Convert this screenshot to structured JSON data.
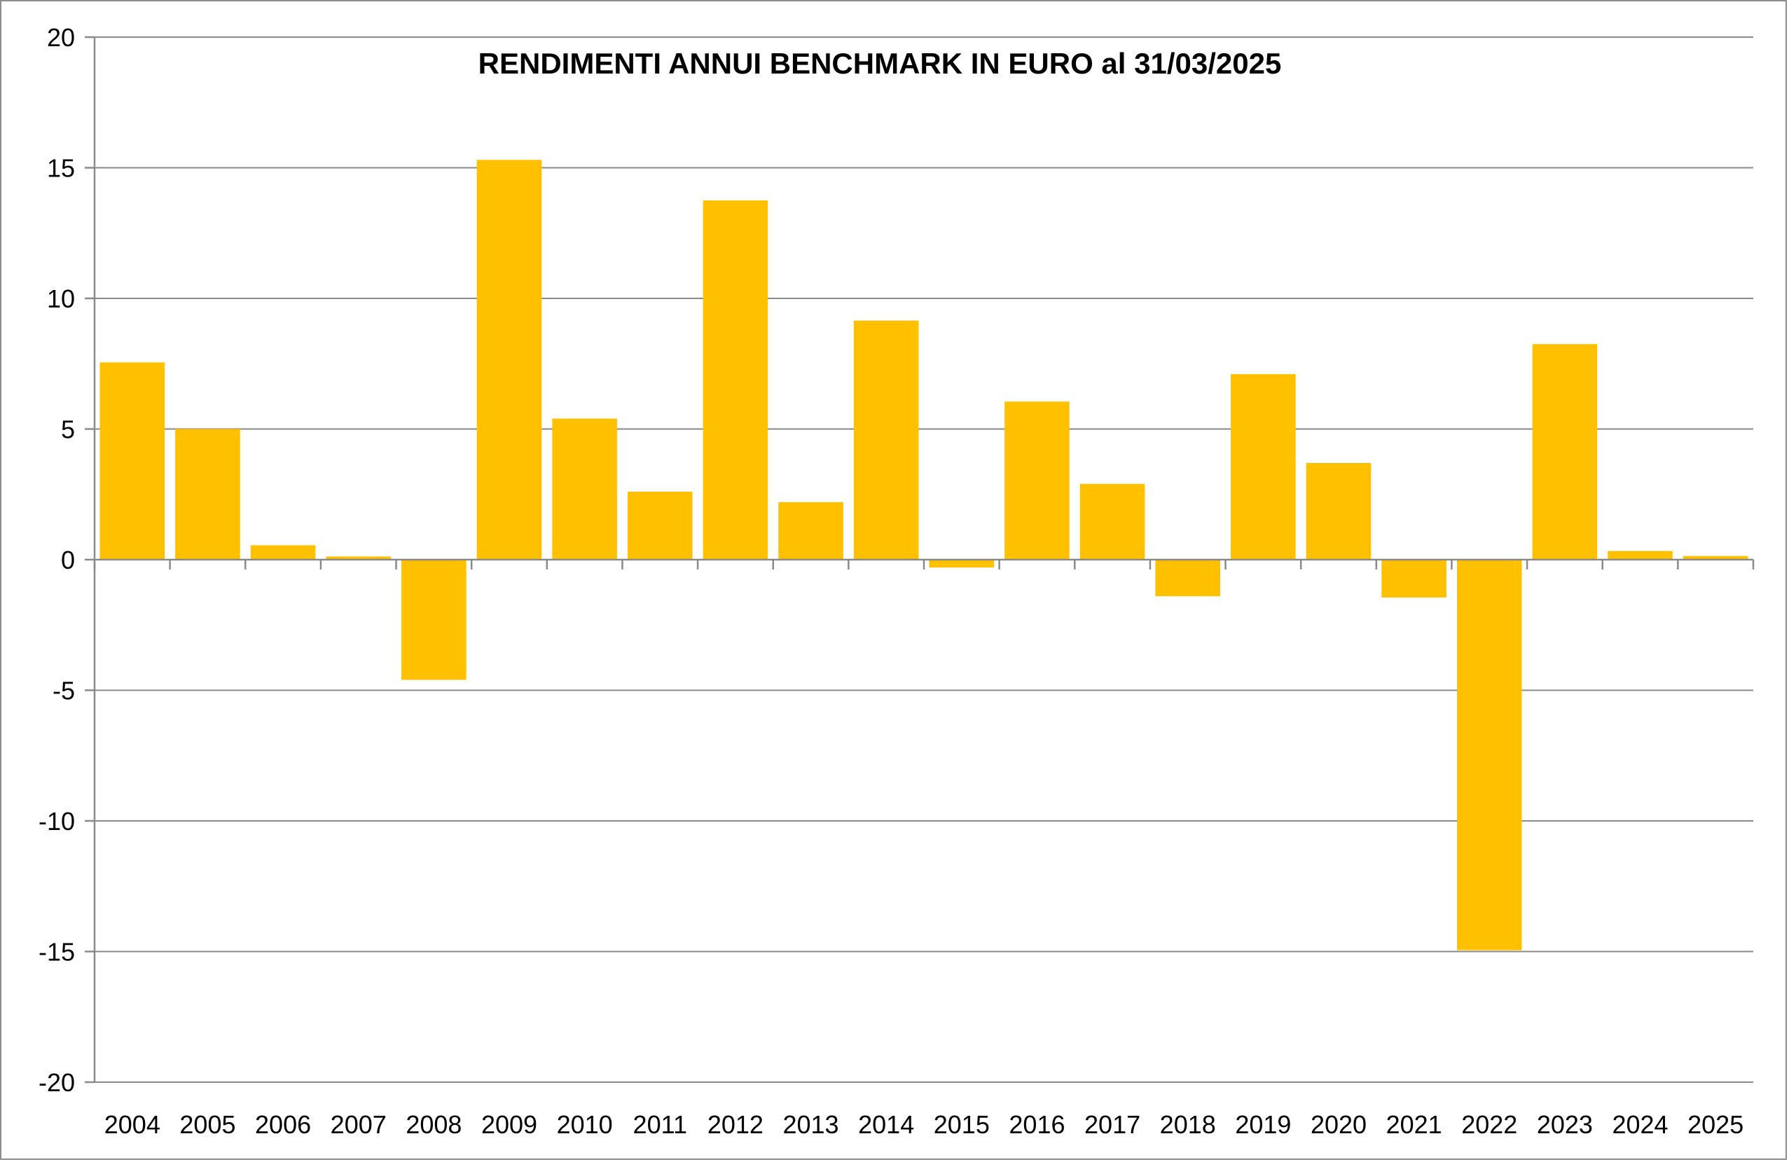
{
  "chart_data": {
    "type": "bar",
    "title": "RENDIMENTI ANNUI BENCHMARK IN EURO al 31/03/2025",
    "xlabel": "",
    "ylabel": "",
    "categories": [
      "2004",
      "2005",
      "2006",
      "2007",
      "2008",
      "2009",
      "2010",
      "2011",
      "2012",
      "2013",
      "2014",
      "2015",
      "2016",
      "2017",
      "2018",
      "2019",
      "2020",
      "2021",
      "2022",
      "2023",
      "2024",
      "2025"
    ],
    "values": [
      7.55,
      5.0,
      0.55,
      0.12,
      -4.6,
      15.3,
      5.4,
      2.6,
      13.75,
      2.2,
      9.15,
      -0.3,
      6.05,
      2.9,
      -1.4,
      7.1,
      3.7,
      -1.45,
      -14.95,
      8.25,
      0.33,
      0.14
    ],
    "ylim": [
      -20,
      20
    ],
    "yticks": [
      20,
      15,
      10,
      5,
      0,
      -5,
      -10,
      -15,
      -20
    ],
    "yticks_text": [
      "20",
      "15",
      "10",
      "5",
      "0",
      "-5",
      "-10",
      "-15",
      "-20"
    ],
    "grid": true,
    "legend": "none",
    "bar_color": "#FFC000"
  }
}
